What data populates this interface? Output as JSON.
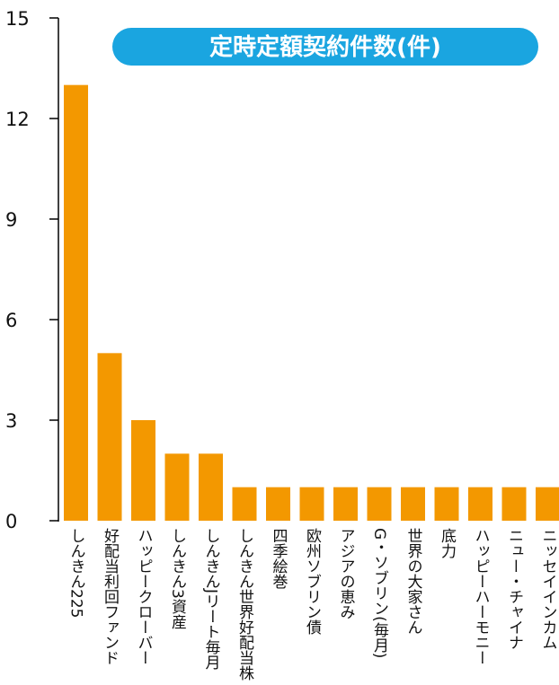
{
  "chart_data": {
    "type": "bar",
    "title": "定時定額契約件数(件)",
    "categories": [
      "しんきん225",
      "好配当利回ファンド",
      "ハッピークローバー",
      "しんきん3資産",
      "しんきんJリート毎月",
      "しんきん世界好配当株",
      "四季絵巻",
      "欧州ソブリン債",
      "アジアの恵み",
      "G・ソブリン(毎月)",
      "世界の大家さん",
      "底力",
      "ハッピーハーモニー",
      "ニュー・チャイナ",
      "ニッセイインカム"
    ],
    "values": [
      13,
      5,
      3,
      2,
      2,
      1,
      1,
      1,
      1,
      1,
      1,
      1,
      1,
      1,
      1
    ],
    "ylim": [
      0,
      15
    ],
    "yticks": [
      0,
      3,
      6,
      9,
      12,
      15
    ],
    "xlabel": "",
    "ylabel": "",
    "grid": false,
    "colors": {
      "bar": "#f39800",
      "title_bg": "#1aa5e0",
      "title_text": "#ffffff",
      "axis": "#000000"
    }
  }
}
